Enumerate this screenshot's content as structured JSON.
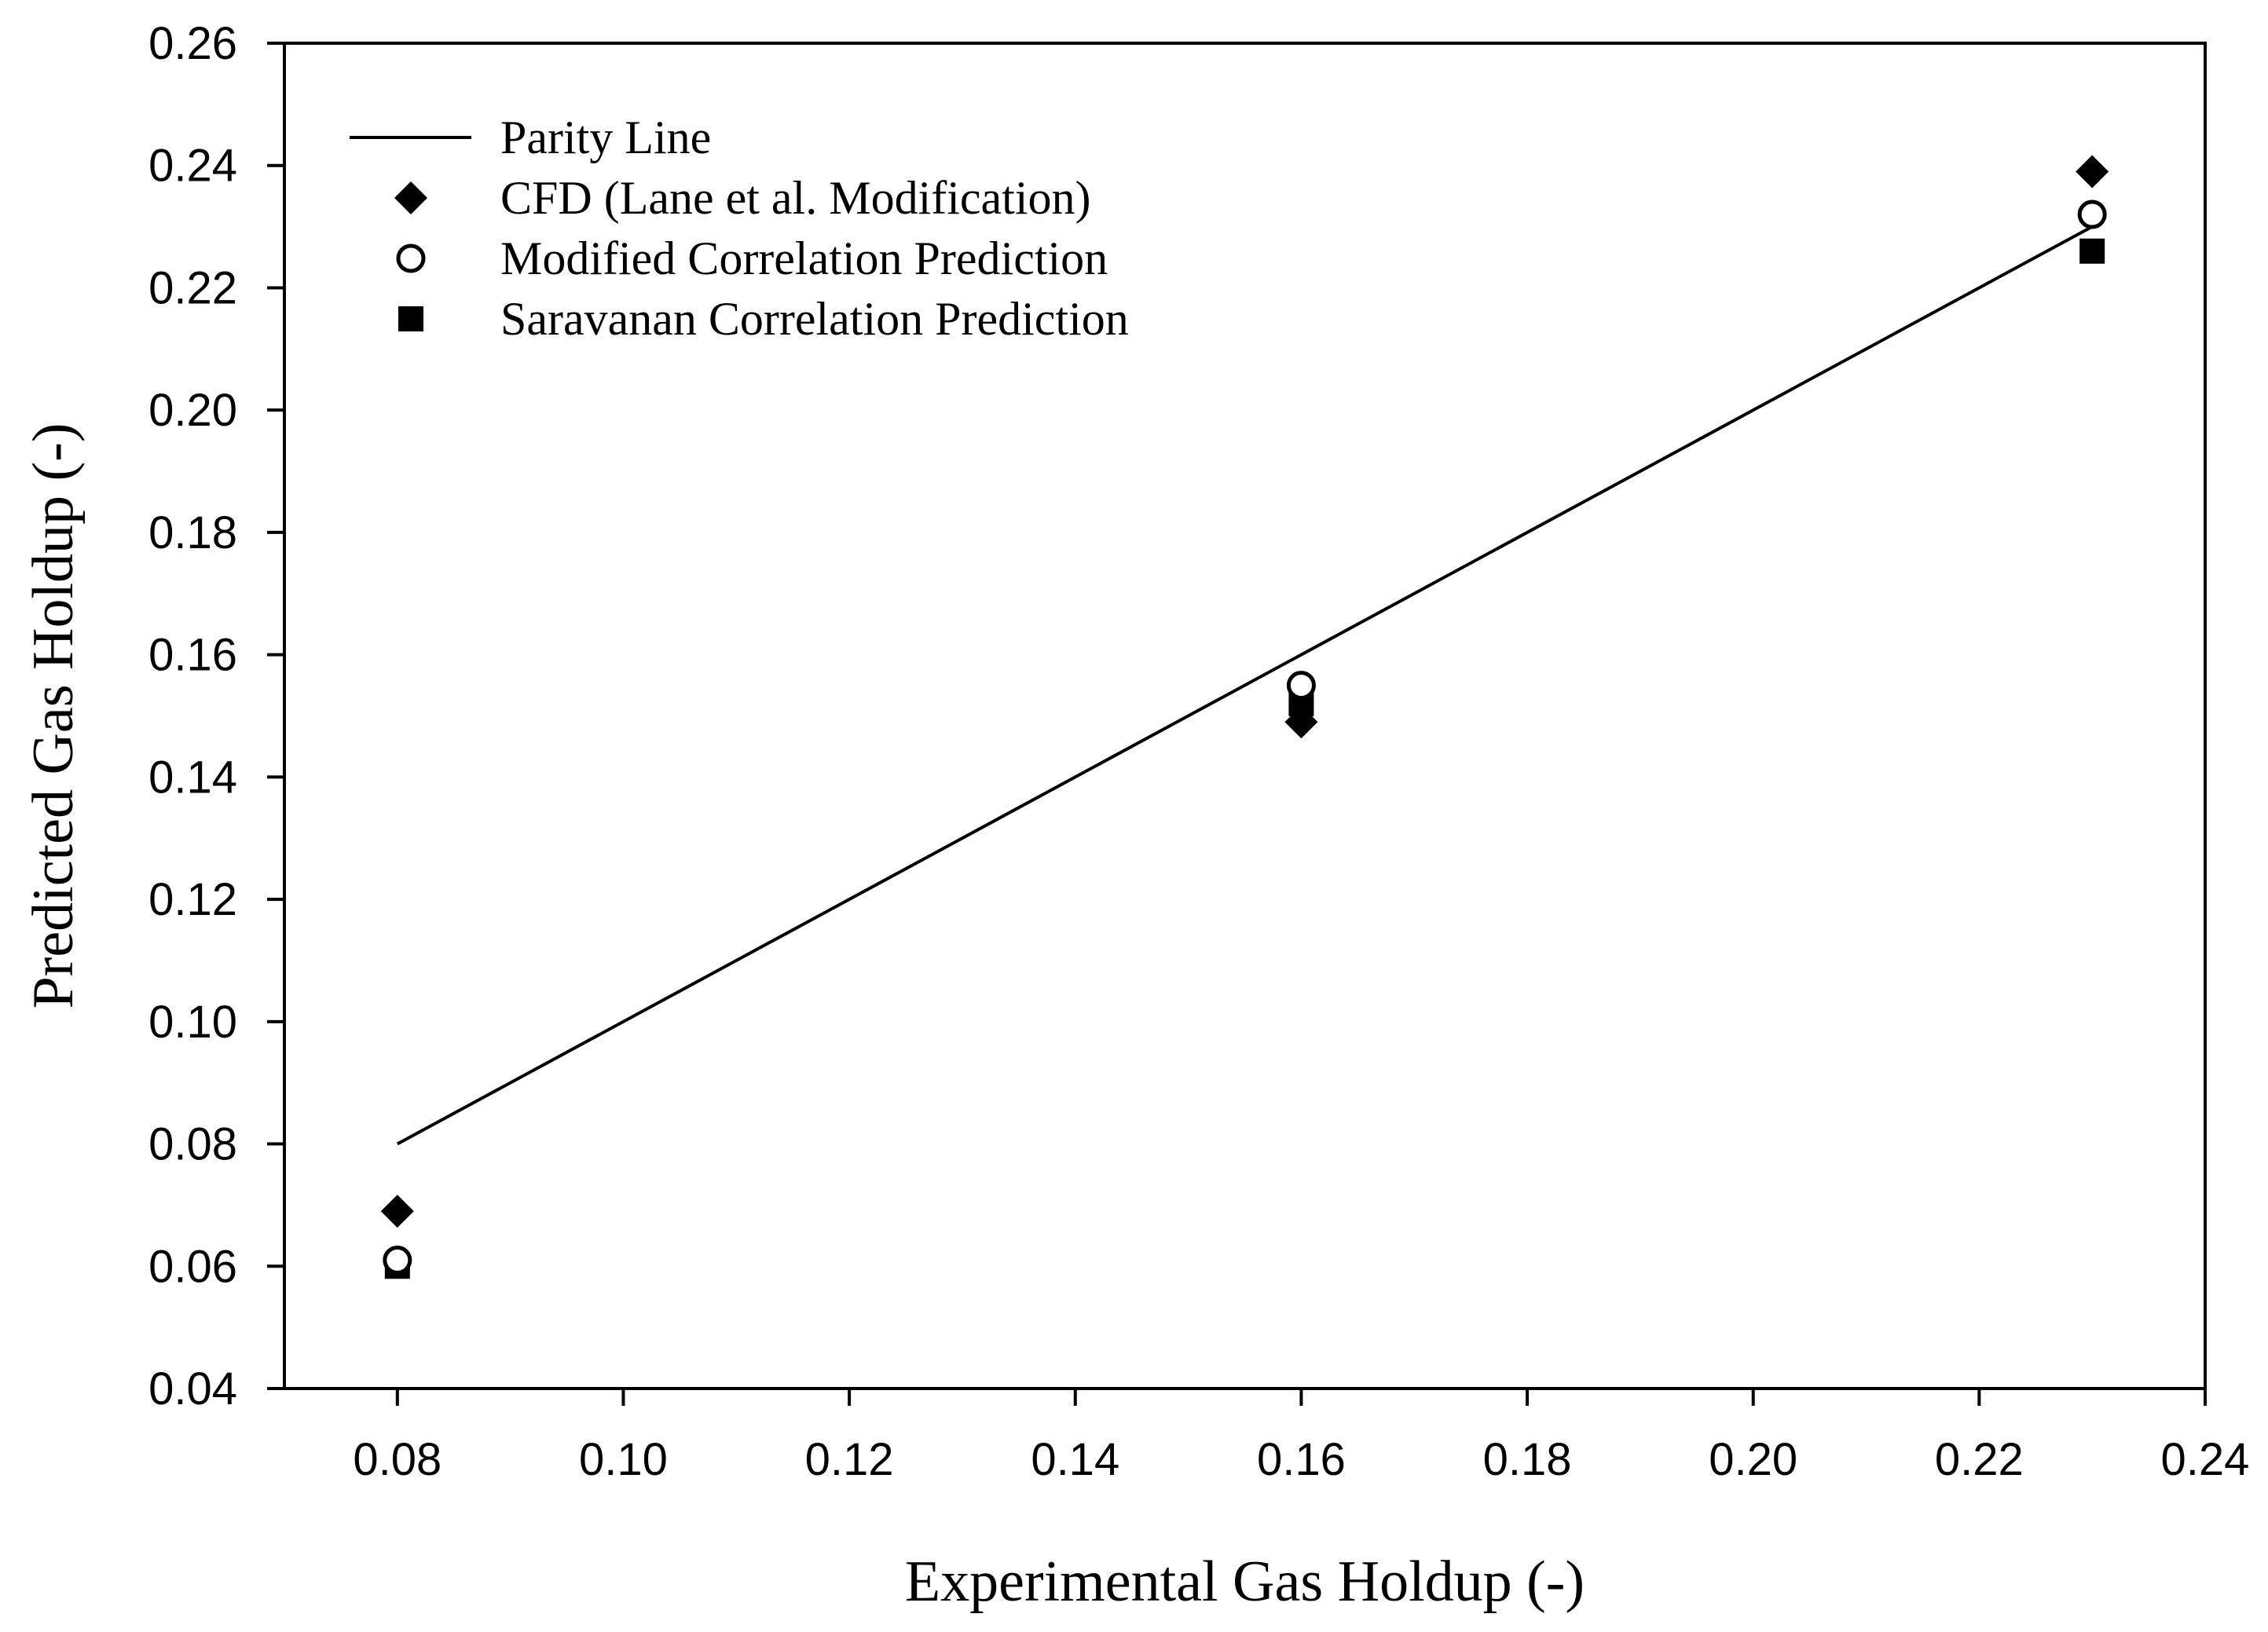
{
  "chart_data": {
    "type": "scatter",
    "title": "",
    "xlabel": "Experimental Gas Holdup (-)",
    "ylabel": "Predicted Gas Holdup (-)",
    "xlim": [
      0.07,
      0.24
    ],
    "ylim": [
      0.04,
      0.26
    ],
    "x_ticks": [
      "0.08",
      "0.10",
      "0.12",
      "0.14",
      "0.16",
      "0.18",
      "0.20",
      "0.22",
      "0.24"
    ],
    "y_ticks": [
      "0.04",
      "0.06",
      "0.08",
      "0.10",
      "0.12",
      "0.14",
      "0.16",
      "0.18",
      "0.20",
      "0.22",
      "0.24",
      "0.26"
    ],
    "grid": false,
    "legend_position": "top-left",
    "series": [
      {
        "name": "Parity Line",
        "kind": "line",
        "marker": "none",
        "color": "#000000",
        "x": [
          0.08,
          0.23
        ],
        "y": [
          0.08,
          0.23
        ]
      },
      {
        "name": "CFD (Lane et al. Modification)",
        "kind": "scatter",
        "marker": "diamond-filled",
        "color": "#000000",
        "x": [
          0.08,
          0.16,
          0.23
        ],
        "y": [
          0.069,
          0.149,
          0.239
        ]
      },
      {
        "name": "Modified Correlation Prediction",
        "kind": "scatter",
        "marker": "circle-open",
        "color": "#000000",
        "x": [
          0.08,
          0.16,
          0.23
        ],
        "y": [
          0.061,
          0.155,
          0.232
        ]
      },
      {
        "name": "Saravanan Correlation Prediction",
        "kind": "scatter",
        "marker": "square-filled",
        "color": "#000000",
        "x": [
          0.08,
          0.16,
          0.23
        ],
        "y": [
          0.06,
          0.152,
          0.226
        ]
      }
    ]
  }
}
